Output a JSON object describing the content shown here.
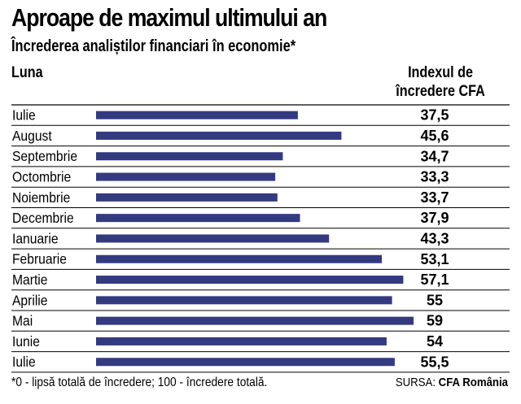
{
  "header": {
    "title": "Aproape de maximul ultimului an",
    "subtitle": "Încrederea analiștilor financiari în economie*",
    "col_left": "Luna",
    "col_right_line1": "Indexul de",
    "col_right_line2": "încredere CFA"
  },
  "footer": {
    "footnote": "*0 - lipsă totală de încredere; 100 - încredere totală.",
    "source_label": "SURSA:",
    "source_name": "CFA România"
  },
  "colors": {
    "bar": "#343a80",
    "rule": "#000000",
    "background": "#ffffff"
  },
  "chart_data": {
    "type": "bar",
    "orientation": "horizontal",
    "title": "Aproape de maximul ultimului an",
    "subtitle": "Încrederea analiștilor financiari în economie*",
    "categories": [
      "Iulie",
      "August",
      "Septembrie",
      "Octombrie",
      "Noiembrie",
      "Decembrie",
      "Ianuarie",
      "Februarie",
      "Martie",
      "Aprilie",
      "Mai",
      "Iunie",
      "Iulie"
    ],
    "values": [
      37.5,
      45.6,
      34.7,
      33.3,
      33.7,
      37.9,
      43.3,
      53.1,
      57.1,
      55,
      59,
      54,
      55.5
    ],
    "value_labels": [
      "37,5",
      "45,6",
      "34,7",
      "33,3",
      "33,7",
      "37,9",
      "43,3",
      "53,1",
      "57,1",
      "55",
      "59",
      "54",
      "55,5"
    ],
    "grid": false,
    "legend": "none"
  }
}
